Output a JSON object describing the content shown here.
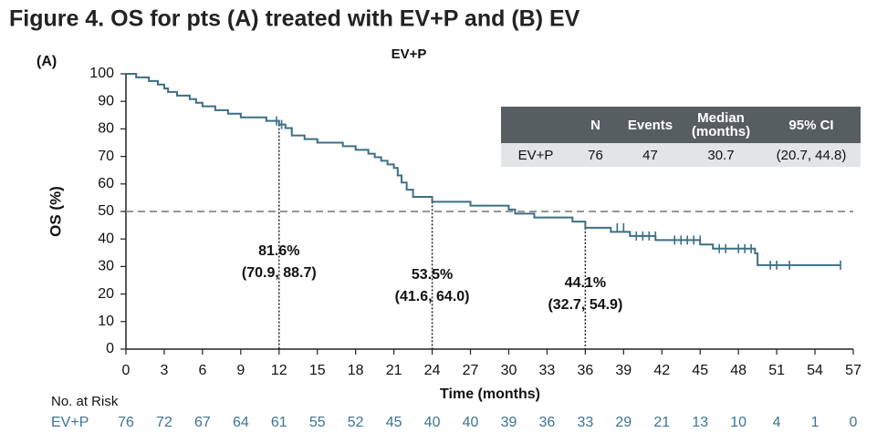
{
  "chart_data": {
    "type": "line",
    "step": "post",
    "title": "Figure 4. OS for pts (A) treated with EV+P and (B) EV",
    "panel_label": "(A)",
    "subtitle": "EV+P",
    "x_label": "Time (months)",
    "y_label": "OS (%)",
    "xlim": [
      0,
      57
    ],
    "ylim": [
      0,
      100
    ],
    "xticks": [
      0,
      3,
      6,
      9,
      12,
      15,
      18,
      21,
      24,
      27,
      30,
      33,
      36,
      39,
      42,
      45,
      48,
      51,
      54,
      57
    ],
    "yticks": [
      0,
      10,
      20,
      30,
      40,
      50,
      60,
      70,
      80,
      90,
      100
    ],
    "reference_y": 50,
    "series": [
      {
        "name": "EV+P",
        "color": "#3d6f84",
        "x": [
          0,
          0.8,
          1.8,
          2.5,
          3.0,
          3.3,
          4.0,
          5.0,
          5.5,
          6.0,
          7.0,
          8.0,
          9.0,
          11.0,
          12.0,
          12.5,
          13.0,
          14.0,
          15.0,
          17.0,
          18.0,
          19.0,
          19.5,
          20.0,
          20.5,
          21.0,
          21.3,
          21.6,
          22.0,
          22.5,
          24.0,
          27.0,
          30.0,
          30.5,
          32.0,
          35.0,
          36.0,
          38.0,
          39.5,
          41.5,
          45.0,
          46.0,
          49.3,
          49.5,
          56.0
        ],
        "values": [
          100,
          98.7,
          97.4,
          96.1,
          94.7,
          93.4,
          92.1,
          90.8,
          89.5,
          88.2,
          86.8,
          85.5,
          84.2,
          82.9,
          81.6,
          80.3,
          77.6,
          76.3,
          75.0,
          73.7,
          72.4,
          71.0,
          69.7,
          68.4,
          67.1,
          65.8,
          63.1,
          60.5,
          57.9,
          55.3,
          53.5,
          52.1,
          50.7,
          49.2,
          47.8,
          46.3,
          44.1,
          42.6,
          41.1,
          39.6,
          38.0,
          36.5,
          34.8,
          30.5,
          30.5
        ],
        "censor_x": [
          11.8,
          12.2,
          38.5,
          39.0,
          40.0,
          40.5,
          41.0,
          41.5,
          43.0,
          43.5,
          44.0,
          44.5,
          45.0,
          46.5,
          47.0,
          48.0,
          48.5,
          49.0,
          50.5,
          51.0,
          52.0,
          56.0
        ],
        "censor_y": [
          82.9,
          81.6,
          44.1,
          44.1,
          41.1,
          41.1,
          41.1,
          41.1,
          39.6,
          39.6,
          39.6,
          39.6,
          39.6,
          36.5,
          36.5,
          36.5,
          36.5,
          36.5,
          30.5,
          30.5,
          30.5,
          30.5
        ]
      }
    ],
    "annotations": [
      {
        "x": 12,
        "y": 81.6,
        "label": "81.6%",
        "ci": "(70.9, 88.7)"
      },
      {
        "x": 24,
        "y": 53.5,
        "label": "53.5%",
        "ci": "(41.6, 64.0)"
      },
      {
        "x": 36,
        "y": 44.1,
        "label": "44.1%",
        "ci": "(32.7, 54.9)"
      }
    ],
    "risk_table": {
      "title": "No. at Risk",
      "rows": [
        {
          "name": "EV+P",
          "values": [
            76,
            72,
            67,
            64,
            61,
            55,
            52,
            45,
            40,
            40,
            39,
            36,
            33,
            29,
            21,
            13,
            10,
            4,
            1,
            0
          ]
        }
      ]
    },
    "summary_table": {
      "header": [
        "N",
        "Events",
        "Median (months)",
        "95% CI"
      ],
      "rows": [
        [
          "EV+P",
          76,
          47,
          30.7,
          "(20.7, 44.8)"
        ]
      ]
    }
  }
}
